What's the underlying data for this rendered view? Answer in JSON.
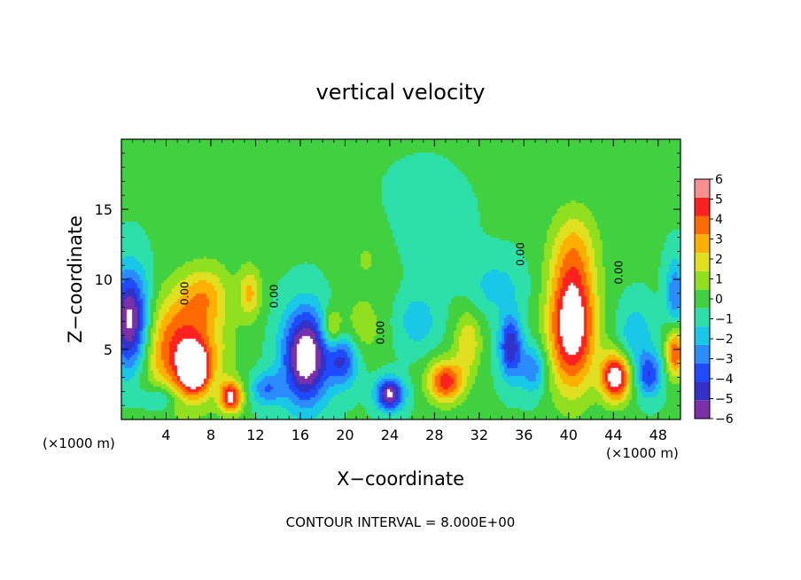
{
  "chart_data": {
    "type": "heatmap",
    "title": "vertical velocity",
    "xlabel": "X−coordinate",
    "ylabel": "Z−coordinate",
    "x_unit_left": "(×1000 m)",
    "x_unit_right": "(×1000 m)",
    "footer": "CONTOUR INTERVAL = 8.000E+00",
    "xlim": [
      0,
      50
    ],
    "ylim": [
      0,
      20
    ],
    "x_ticks": [
      4,
      8,
      12,
      16,
      20,
      24,
      28,
      32,
      36,
      40,
      44,
      48
    ],
    "x_tick_labels": [
      "4",
      "8",
      "12",
      "16",
      "20",
      "24",
      "28",
      "32",
      "36",
      "40",
      "44",
      "48"
    ],
    "y_ticks": [
      5,
      10,
      15
    ],
    "y_tick_labels": [
      "5",
      "10",
      "15"
    ],
    "colorbar": {
      "min": -6,
      "max": 6,
      "levels": [
        -6,
        -5,
        -4,
        -3,
        -2,
        -1,
        0,
        1,
        2,
        3,
        4,
        5,
        6
      ],
      "labels": [
        "−6",
        "−5",
        "−4",
        "−3",
        "−2",
        "−1",
        "0",
        "1",
        "2",
        "3",
        "4",
        "5",
        "6"
      ],
      "colors": [
        "#7b2fa8",
        "#3232c8",
        "#1e4bff",
        "#2a8cff",
        "#18c8e6",
        "#2de0aa",
        "#40d040",
        "#90e020",
        "#e0e020",
        "#ffb000",
        "#ff6a00",
        "#ff2020",
        "#f89090"
      ]
    },
    "contour_labels": [
      "0.00",
      "0.00",
      "0.00",
      "0.00",
      "0.00"
    ],
    "blobs": [
      {
        "x": 0.8,
        "z": 7.0,
        "w": -7,
        "rx": 1.6,
        "rz": 3.5
      },
      {
        "x": 5.5,
        "z": 5.0,
        "w": 5.5,
        "rx": 3.5,
        "rz": 3.8
      },
      {
        "x": 6.5,
        "z": 3.6,
        "w": 7,
        "rx": 1.2,
        "rz": 1.5
      },
      {
        "x": 9.8,
        "z": 1.6,
        "w": 6,
        "rx": 1.0,
        "rz": 1.1
      },
      {
        "x": 11.5,
        "z": 9.0,
        "w": 3,
        "rx": 1.0,
        "rz": 1.8
      },
      {
        "x": 7.5,
        "z": 9.0,
        "w": 2.5,
        "rx": 2.2,
        "rz": 2.0
      },
      {
        "x": 16.5,
        "z": 4.5,
        "w": -7.5,
        "rx": 2.0,
        "rz": 3.3
      },
      {
        "x": 18.8,
        "z": 6.5,
        "w": 3,
        "rx": 0.9,
        "rz": 1.4
      },
      {
        "x": 19.8,
        "z": 4.2,
        "w": -4,
        "rx": 1.3,
        "rz": 1.8
      },
      {
        "x": 24.0,
        "z": 1.8,
        "w": -6.5,
        "rx": 1.2,
        "rz": 1.1
      },
      {
        "x": 21.5,
        "z": 6.5,
        "w": 1.5,
        "rx": 1.8,
        "rz": 2.0
      },
      {
        "x": 29.0,
        "z": 2.7,
        "w": 5.5,
        "rx": 1.6,
        "rz": 1.5
      },
      {
        "x": 31.0,
        "z": 5.5,
        "w": 2.8,
        "rx": 1.2,
        "rz": 2.2
      },
      {
        "x": 34.8,
        "z": 5.2,
        "w": -5,
        "rx": 1.0,
        "rz": 2.2
      },
      {
        "x": 36.8,
        "z": 3.6,
        "w": -3,
        "rx": 1.2,
        "rz": 1.7
      },
      {
        "x": 40.3,
        "z": 6.8,
        "w": 7.5,
        "rx": 2.1,
        "rz": 4.6
      },
      {
        "x": 40.5,
        "z": 12.5,
        "w": 2,
        "rx": 2.2,
        "rz": 3.0
      },
      {
        "x": 44.2,
        "z": 3.0,
        "w": 7,
        "rx": 1.3,
        "rz": 1.7
      },
      {
        "x": 46.0,
        "z": 6.0,
        "w": -2,
        "rx": 1.5,
        "rz": 2.2
      },
      {
        "x": 47.2,
        "z": 3.2,
        "w": -4,
        "rx": 1.1,
        "rz": 1.5
      },
      {
        "x": 49.5,
        "z": 4.8,
        "w": 5,
        "rx": 0.8,
        "rz": 1.8
      },
      {
        "x": 49.5,
        "z": 9.0,
        "w": -3,
        "rx": 0.8,
        "rz": 2.5
      },
      {
        "x": 13.0,
        "z": 2.2,
        "w": -3,
        "rx": 1.4,
        "rz": 1.2
      },
      {
        "x": 3.5,
        "z": 1.5,
        "w": -2.5,
        "rx": 1.5,
        "rz": 1.0
      },
      {
        "x": 26.5,
        "z": 7.0,
        "w": -1.8,
        "rx": 1.8,
        "rz": 2.0
      },
      {
        "x": 33.5,
        "z": 9.5,
        "w": -1.5,
        "rx": 2.5,
        "rz": 2.0
      },
      {
        "x": 22.0,
        "z": 11.5,
        "w": 1,
        "rx": 2.5,
        "rz": 3.0
      },
      {
        "x": 27.0,
        "z": 14.0,
        "w": -0.8,
        "rx": 3.5,
        "rz": 3.5
      },
      {
        "x": 10.0,
        "z": 14.0,
        "w": 0.6,
        "rx": 4.0,
        "rz": 3.0
      }
    ]
  }
}
